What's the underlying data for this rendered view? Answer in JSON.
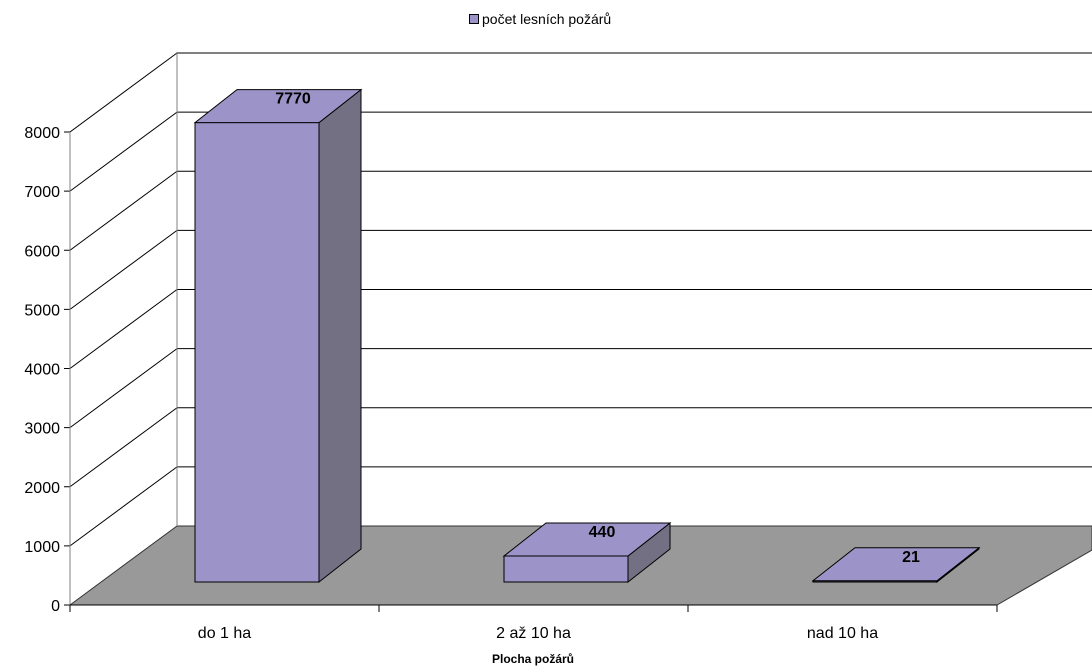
{
  "chart_data": {
    "type": "bar",
    "three_d": true,
    "categories": [
      "do 1 ha",
      "2 až 10 ha",
      "nad 10 ha"
    ],
    "series": [
      {
        "name": "počet lesních požárů",
        "values": [
          7770,
          440,
          21
        ],
        "color": "#9c94c8"
      }
    ],
    "data_labels": [
      "7770",
      "440",
      "21"
    ],
    "xlabel": "Plocha požárů",
    "ylabel": "",
    "ylim": [
      0,
      8000
    ],
    "yticks": [
      "0",
      "1000",
      "2000",
      "3000",
      "4000",
      "5000",
      "6000",
      "7000",
      "8000"
    ],
    "grid": true,
    "legend": "top-center",
    "colors": {
      "bar_front": "#9c94c8",
      "bar_side": "#747084",
      "bar_top": "#9c94c8",
      "floor": "#999999"
    }
  }
}
